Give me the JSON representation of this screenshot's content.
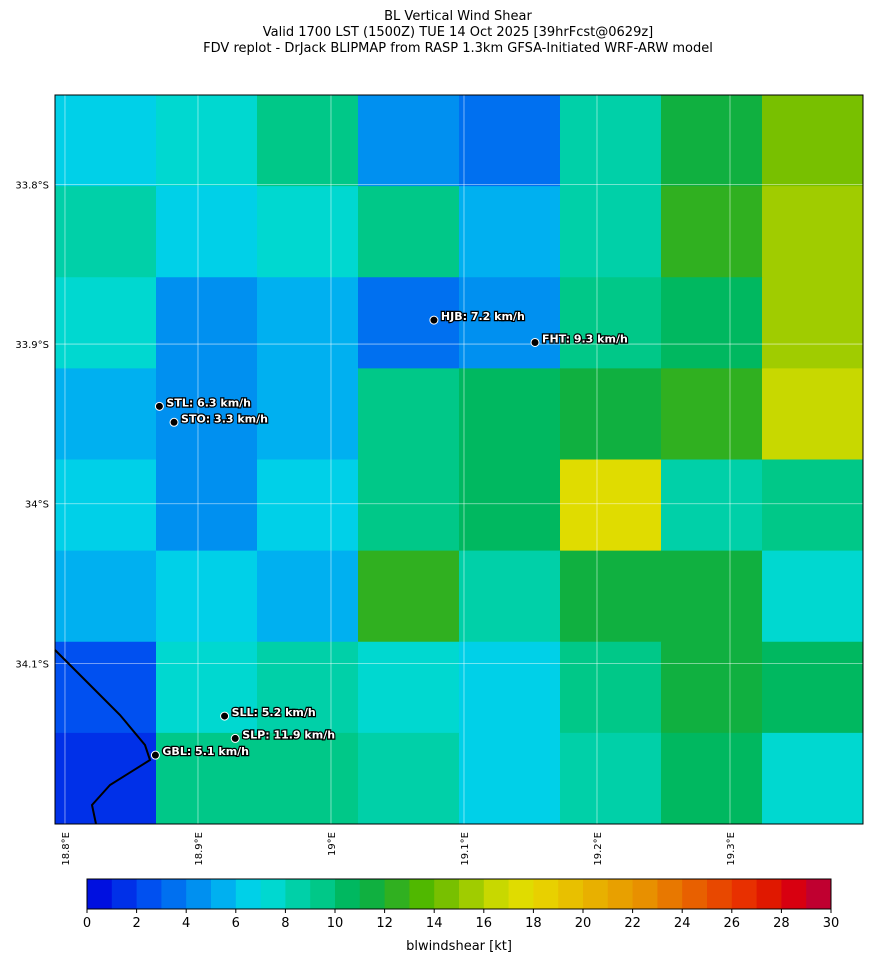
{
  "map": {
    "title": [
      "BL Vertical Wind Shear",
      "Valid 1700 LST (1500Z) TUE 14 Oct 2025 [39hrFcst@0629z]",
      "FDV replot - DrJack BLIPMAP from RASP 1.3km GFSA-Initiated WRF-ARW model"
    ],
    "xlim": [
      18.7925,
      19.4
    ],
    "ylim": [
      33.744,
      34.2006
    ],
    "xticks": [
      {
        "value": 18.8,
        "label": "18.8°E"
      },
      {
        "value": 18.9,
        "label": "18.9°E"
      },
      {
        "value": 19.0,
        "label": "19°E"
      },
      {
        "value": 19.1,
        "label": "19.1°E"
      },
      {
        "value": 19.2,
        "label": "19.2°E"
      },
      {
        "value": 19.3,
        "label": "19.3°E"
      }
    ],
    "yticks": [
      {
        "value": 33.8,
        "label": "33.8°S"
      },
      {
        "value": 33.9,
        "label": "33.9°S"
      },
      {
        "value": 34.0,
        "label": "34°S"
      },
      {
        "value": 34.1,
        "label": "34.1°S"
      }
    ],
    "grid": true,
    "cells": [
      [
        6,
        7,
        9,
        4,
        3,
        8,
        11,
        14
      ],
      [
        8,
        6,
        7,
        9,
        5,
        8,
        12,
        15
      ],
      [
        7,
        4,
        5,
        3,
        4,
        9,
        10,
        15
      ],
      [
        5,
        4,
        5,
        9,
        10,
        11,
        12,
        16
      ],
      [
        6,
        4,
        6,
        9,
        10,
        17,
        8,
        9
      ],
      [
        5,
        6,
        5,
        12,
        8,
        11,
        11,
        7
      ],
      [
        2,
        7,
        8,
        7,
        6,
        9,
        11,
        10
      ],
      [
        1,
        9,
        9,
        8,
        6,
        8,
        10,
        7
      ]
    ],
    "stations": [
      {
        "label": "HJB: 7.2 km/h",
        "lon": 19.0774,
        "lat": 33.885
      },
      {
        "label": "FHT: 9.3 km/h",
        "lon": 19.1534,
        "lat": 33.899
      },
      {
        "label": "STL: 6.3 km/h",
        "lon": 18.871,
        "lat": 33.939
      },
      {
        "label": "STO: 3.3 km/h",
        "lon": 18.882,
        "lat": 33.949
      },
      {
        "label": "SLL: 5.2 km/h",
        "lon": 18.92,
        "lat": 34.133
      },
      {
        "label": "SLP: 11.9 km/h",
        "lon": 18.928,
        "lat": 34.147
      },
      {
        "label": "GBL: 5.1 km/h",
        "lon": 18.868,
        "lat": 34.1575
      }
    ],
    "colorbar": {
      "label": "blwindshear [kt]",
      "clim": [
        0,
        30
      ],
      "ticks": [
        0,
        2,
        4,
        6,
        8,
        10,
        12,
        14,
        16,
        18,
        20,
        22,
        24,
        26,
        28,
        30
      ],
      "colors": [
        "#0010e0",
        "#0030e8",
        "#0050f0",
        "#0070f0",
        "#0090f0",
        "#00b0f0",
        "#00d0e8",
        "#00d8d0",
        "#00d0a8",
        "#00c888",
        "#00b860",
        "#10b040",
        "#30b020",
        "#50b800",
        "#78c000",
        "#a0cc00",
        "#c8d800",
        "#e0dc00",
        "#e8d000",
        "#e8c000",
        "#e8b000",
        "#e8a000",
        "#e89000",
        "#e87800",
        "#e86000",
        "#e84800",
        "#e83000",
        "#e01800",
        "#d80010",
        "#c00030"
      ]
    }
  }
}
